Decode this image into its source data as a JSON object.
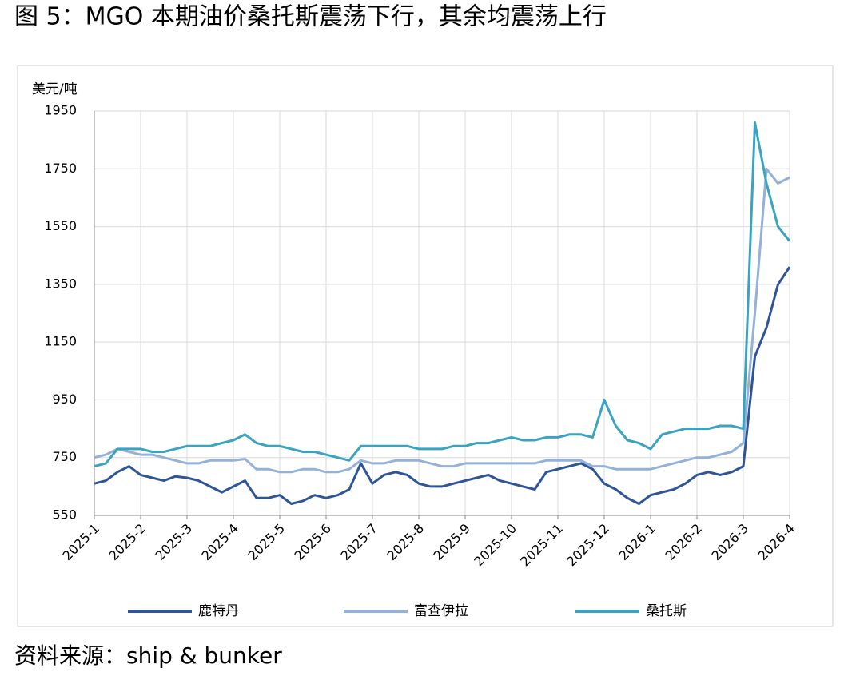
{
  "chart_data": {
    "type": "line",
    "title": "图 5：MGO 本期油价桑托斯震荡下行，其余均震荡上行",
    "y_label": "美元/吨",
    "source": "资料来源：ship & bunker",
    "categories": [
      "2025-1",
      null,
      null,
      null,
      "2025-2",
      null,
      null,
      null,
      "2025-3",
      null,
      null,
      null,
      "2025-4",
      null,
      null,
      null,
      "2025-5",
      null,
      null,
      null,
      "2025-6",
      null,
      null,
      null,
      "2025-7",
      null,
      null,
      null,
      "2025-8",
      null,
      null,
      null,
      "2025-9",
      null,
      null,
      null,
      "2025-10",
      null,
      null,
      null,
      "2025-11",
      null,
      null,
      null,
      "2025-12",
      null,
      null,
      null,
      "2026-1",
      null,
      null,
      null,
      "2026-2",
      null,
      null,
      null,
      "2026-3",
      null,
      null,
      null,
      "2026-4"
    ],
    "series": [
      {
        "name": "鹿特丹",
        "color": "#2e5597",
        "values": [
          660,
          670,
          700,
          720,
          690,
          680,
          670,
          685,
          680,
          670,
          650,
          630,
          650,
          670,
          610,
          610,
          620,
          590,
          600,
          620,
          610,
          620,
          640,
          730,
          660,
          690,
          700,
          690,
          660,
          650,
          650,
          660,
          670,
          680,
          690,
          670,
          660,
          650,
          640,
          700,
          710,
          720,
          730,
          710,
          660,
          640,
          610,
          590,
          620,
          630,
          640,
          660,
          690,
          700,
          690,
          700,
          720,
          1100,
          1200,
          1350,
          1410
        ]
      },
      {
        "name": "富查伊拉",
        "color": "#94b1da",
        "values": [
          750,
          760,
          780,
          770,
          760,
          760,
          750,
          740,
          730,
          730,
          740,
          740,
          740,
          745,
          710,
          710,
          700,
          700,
          710,
          710,
          700,
          700,
          710,
          740,
          730,
          730,
          740,
          740,
          740,
          730,
          720,
          720,
          730,
          730,
          730,
          730,
          730,
          730,
          730,
          740,
          740,
          740,
          740,
          720,
          720,
          710,
          710,
          710,
          710,
          720,
          730,
          740,
          750,
          750,
          760,
          770,
          800,
          1250,
          1750,
          1700,
          1720
        ]
      },
      {
        "name": "桑托斯",
        "color": "#3aa3c0",
        "values": [
          720,
          730,
          780,
          780,
          780,
          770,
          770,
          780,
          790,
          790,
          790,
          800,
          810,
          830,
          800,
          790,
          790,
          780,
          770,
          770,
          760,
          750,
          740,
          790,
          790,
          790,
          790,
          790,
          780,
          780,
          780,
          790,
          790,
          800,
          800,
          810,
          820,
          810,
          810,
          820,
          820,
          830,
          830,
          820,
          950,
          860,
          810,
          800,
          780,
          830,
          840,
          850,
          850,
          850,
          860,
          860,
          850,
          1910,
          1700,
          1550,
          1500
        ]
      }
    ],
    "ylim": [
      550,
      1950
    ],
    "yticks": [
      550,
      750,
      950,
      1150,
      1350,
      1550,
      1750,
      1950
    ],
    "grid": true,
    "legend": "bottom"
  }
}
